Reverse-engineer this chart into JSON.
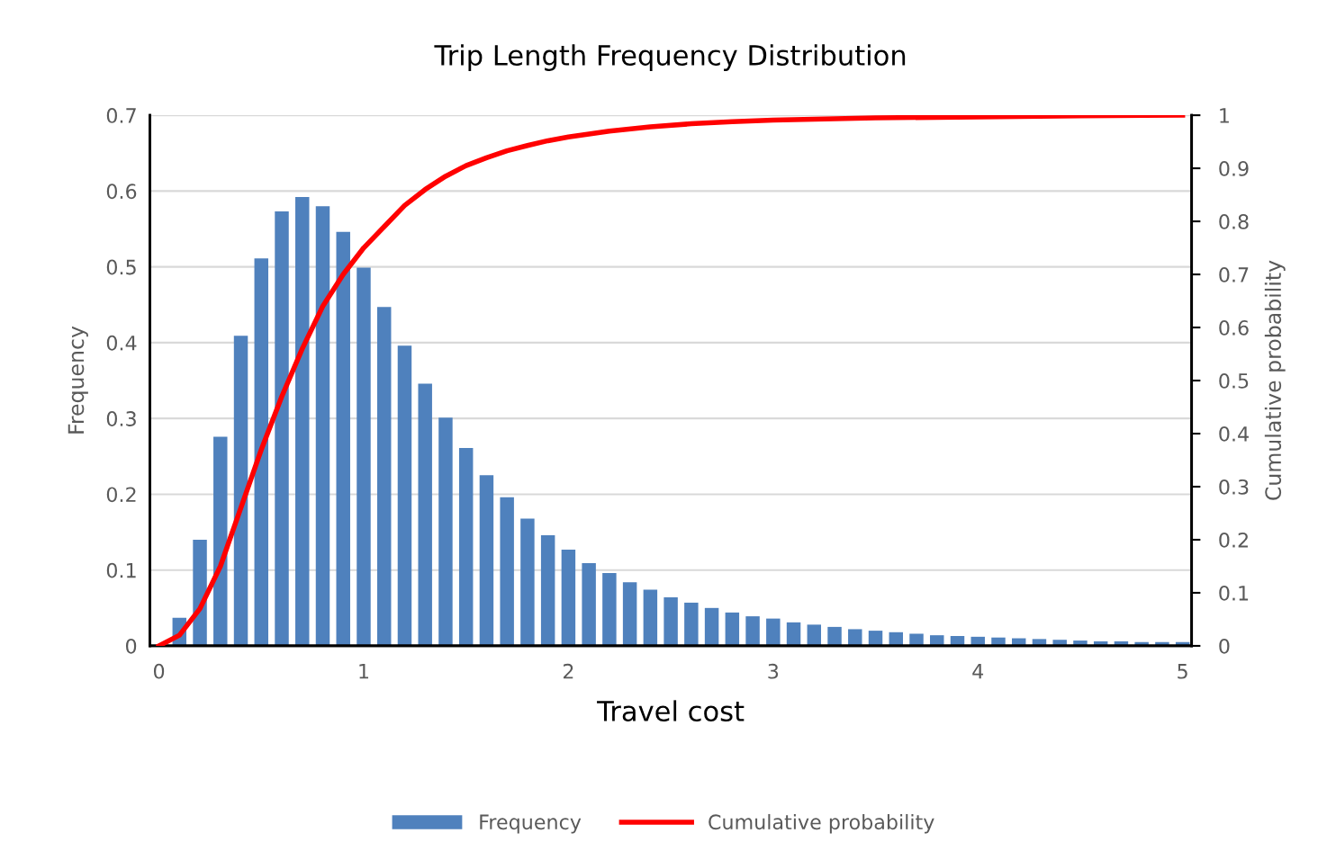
{
  "chart_data": {
    "type": "bar",
    "title": "Trip Length Frequency Distribution",
    "xlabel": "Travel cost",
    "ylabel": "Frequency",
    "y2label": "Cumulative probability",
    "xlim": [
      -0.044,
      5.044
    ],
    "xticks": [
      0,
      1,
      2,
      3,
      4,
      5
    ],
    "ylim": [
      0,
      0.7
    ],
    "yticks": [
      0,
      0.1,
      0.2,
      0.3,
      0.4,
      0.5,
      0.6,
      0.7
    ],
    "y2lim": [
      0,
      1
    ],
    "y2ticks": [
      0,
      0.1,
      0.2,
      0.3,
      0.4,
      0.5,
      0.6,
      0.7,
      0.8,
      0.9,
      1
    ],
    "grid": "y",
    "legend": "bottom",
    "series": [
      {
        "name": "Frequency",
        "color": "#4f81bd",
        "x": [
          0.1,
          0.2,
          0.3,
          0.4,
          0.5,
          0.6,
          0.7,
          0.8,
          0.9,
          1.0,
          1.1,
          1.2,
          1.3,
          1.4,
          1.5,
          1.6,
          1.7,
          1.8,
          1.9,
          2.0,
          2.1,
          2.2,
          2.3,
          2.4,
          2.5,
          2.6,
          2.7,
          2.8,
          2.9,
          3.0,
          3.1,
          3.2,
          3.3,
          3.4,
          3.5,
          3.6,
          3.7,
          3.8,
          3.9,
          4.0,
          4.1,
          4.2,
          4.3,
          4.4,
          4.5,
          4.6,
          4.7,
          4.8,
          4.9,
          5.0
        ],
        "values": [
          0.037,
          0.14,
          0.276,
          0.409,
          0.511,
          0.573,
          0.592,
          0.58,
          0.546,
          0.499,
          0.447,
          0.396,
          0.346,
          0.301,
          0.261,
          0.225,
          0.196,
          0.168,
          0.146,
          0.127,
          0.109,
          0.096,
          0.084,
          0.074,
          0.064,
          0.057,
          0.05,
          0.044,
          0.039,
          0.036,
          0.031,
          0.028,
          0.025,
          0.022,
          0.02,
          0.018,
          0.016,
          0.014,
          0.013,
          0.012,
          0.011,
          0.01,
          0.009,
          0.008,
          0.007,
          0.006,
          0.006,
          0.005,
          0.005,
          0.005
        ]
      },
      {
        "name": "Cumulative probability",
        "type": "line",
        "axis": "y2",
        "color": "#ff0000",
        "line_style": "solid",
        "marker": "none",
        "x": [
          0,
          0.1,
          0.2,
          0.3,
          0.4,
          0.5,
          0.6,
          0.7,
          0.8,
          0.9,
          1.0,
          1.1,
          1.2,
          1.3,
          1.4,
          1.5,
          1.6,
          1.7,
          1.8,
          1.9,
          2.0,
          2.2,
          2.4,
          2.6,
          2.8,
          3.0,
          3.5,
          4.0,
          4.5,
          5.0
        ],
        "values": [
          0,
          0.02,
          0.07,
          0.15,
          0.26,
          0.37,
          0.47,
          0.56,
          0.64,
          0.7,
          0.75,
          0.79,
          0.83,
          0.86,
          0.885,
          0.905,
          0.92,
          0.933,
          0.943,
          0.952,
          0.959,
          0.97,
          0.978,
          0.984,
          0.988,
          0.991,
          0.995,
          0.997,
          0.999,
          1.0
        ]
      }
    ]
  }
}
